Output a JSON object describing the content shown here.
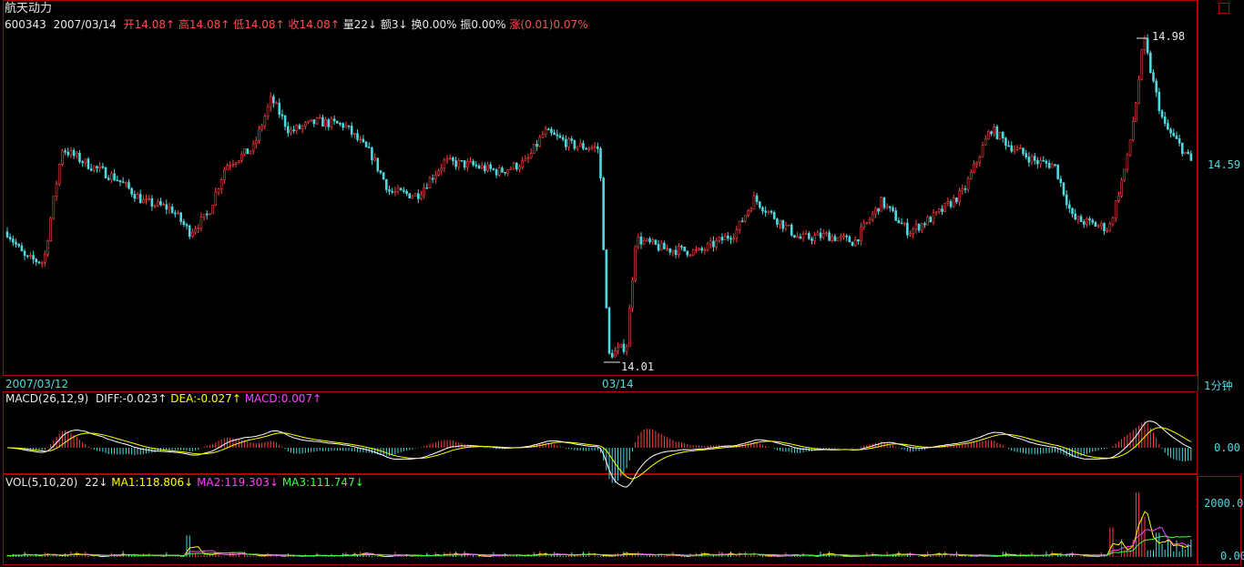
{
  "header": {
    "stock_name": "航天动力",
    "code": "600343",
    "date": "2007/03/14",
    "open_label": "开",
    "open": "14.08",
    "high_label": "高",
    "high": "14.08",
    "low_label": "低",
    "low": "14.08",
    "close_label": "收",
    "close": "14.08",
    "volume_label": "量",
    "volume": "22",
    "amount_label": "额",
    "amount": "3",
    "turnover_label": "换",
    "turnover": "0.00%",
    "amplitude_label": "振",
    "amplitude": "0.00%",
    "change_label": "涨",
    "change": "(0.01)0.07%",
    "arrows": {
      "up": "↑",
      "down": "↓"
    }
  },
  "price_panel": {
    "high_mark": "14.98",
    "low_mark": "14.01",
    "right_price": "14.59",
    "date_left": "2007/03/12",
    "date_mid": "03/14",
    "period": "1分钟"
  },
  "macd_panel": {
    "title": "MACD(26,12,9)",
    "diff_label": "DIFF:",
    "diff": "-0.023",
    "dea_label": "DEA:",
    "dea": "-0.027",
    "macd_label": "MACD:",
    "macd": "0.007",
    "axis_zero": "0.00"
  },
  "vol_panel": {
    "title": "VOL(5,10,20)",
    "vol": "22",
    "ma1_label": "MA1:",
    "ma1": "118.806",
    "ma2_label": "MA2:",
    "ma2": "119.303",
    "ma3_label": "MA3:",
    "ma3": "111.747",
    "axis_top": "2000.0",
    "axis_zero": "0.00"
  },
  "colors": {
    "up": "#ff4040",
    "down": "#4fd9e0",
    "border": "#b00000",
    "diff": "#ffffff",
    "dea": "#ffff00",
    "ma1": "#ffff00",
    "ma2": "#ff40ff",
    "ma3": "#40ff40"
  },
  "chart_data": {
    "type": "candlestick",
    "interval": "1分钟",
    "price_range": [
      14.01,
      14.98
    ],
    "day_ranges": [
      {
        "label": "2007/03/12"
      },
      {
        "label": "03/14"
      }
    ],
    "last_price": 14.59,
    "indicators": {
      "MACD": {
        "params": "26,12,9",
        "DIFF": -0.023,
        "DEA": -0.027,
        "MACD": 0.007
      },
      "VOL": {
        "params": "5,10,20",
        "VOL": 22,
        "MA1": 118.806,
        "MA2": 119.303,
        "MA3": 111.747,
        "y_ticks": [
          0.0,
          2000.0
        ]
      }
    },
    "price_anchors": [
      [
        0,
        14.4
      ],
      [
        20,
        14.32
      ],
      [
        40,
        14.31
      ],
      [
        60,
        14.65
      ],
      [
        90,
        14.6
      ],
      [
        120,
        14.56
      ],
      [
        150,
        14.49
      ],
      [
        180,
        14.47
      ],
      [
        200,
        14.4
      ],
      [
        220,
        14.45
      ],
      [
        240,
        14.6
      ],
      [
        270,
        14.65
      ],
      [
        290,
        14.8
      ],
      [
        310,
        14.7
      ],
      [
        340,
        14.73
      ],
      [
        370,
        14.72
      ],
      [
        400,
        14.63
      ],
      [
        420,
        14.52
      ],
      [
        450,
        14.51
      ],
      [
        480,
        14.61
      ],
      [
        510,
        14.6
      ],
      [
        540,
        14.58
      ],
      [
        570,
        14.61
      ],
      [
        590,
        14.7
      ],
      [
        620,
        14.66
      ],
      [
        650,
        14.65
      ],
      [
        660,
        14.03
      ],
      [
        680,
        14.06
      ],
      [
        690,
        14.38
      ],
      [
        720,
        14.35
      ],
      [
        760,
        14.34
      ],
      [
        800,
        14.4
      ],
      [
        820,
        14.5
      ],
      [
        840,
        14.45
      ],
      [
        870,
        14.38
      ],
      [
        900,
        14.39
      ],
      [
        930,
        14.37
      ],
      [
        960,
        14.49
      ],
      [
        990,
        14.4
      ],
      [
        1020,
        14.45
      ],
      [
        1050,
        14.52
      ],
      [
        1080,
        14.71
      ],
      [
        1100,
        14.66
      ],
      [
        1130,
        14.61
      ],
      [
        1150,
        14.6
      ],
      [
        1170,
        14.44
      ],
      [
        1210,
        14.41
      ],
      [
        1230,
        14.62
      ],
      [
        1240,
        14.8
      ],
      [
        1248,
        14.98
      ],
      [
        1258,
        14.85
      ],
      [
        1270,
        14.72
      ],
      [
        1290,
        14.65
      ],
      [
        1305,
        14.59
      ]
    ],
    "vol_spikes": [
      [
        205,
        800
      ],
      [
        1220,
        1100
      ],
      [
        1248,
        2400
      ],
      [
        1255,
        1500
      ],
      [
        1270,
        900
      ]
    ]
  }
}
